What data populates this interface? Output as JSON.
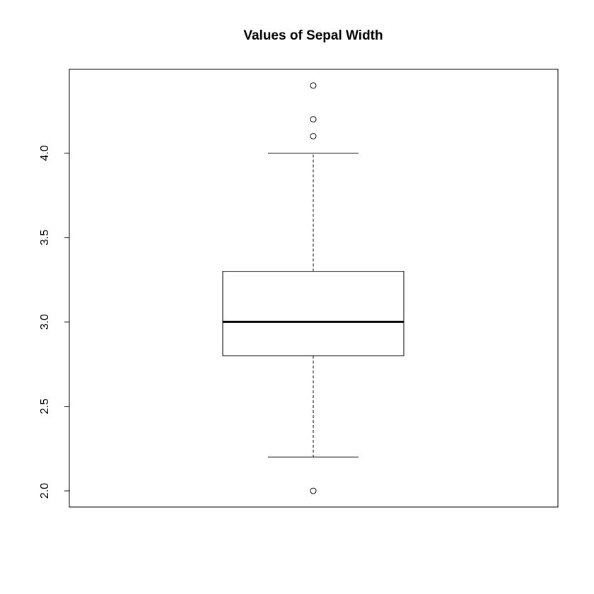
{
  "chart_data": {
    "type": "box",
    "title": "Values of Sepal Width",
    "whisker_low": 2.2,
    "q1": 2.8,
    "median": 3.0,
    "q3": 3.3,
    "whisker_high": 4.0,
    "outliers": [
      4.4,
      4.2,
      4.1,
      2.0
    ],
    "ylim": [
      1.904,
      4.496
    ],
    "yticks": [
      {
        "value": 2,
        "label": "2.0"
      },
      2.5,
      {
        "value": 3,
        "label": "3.0"
      },
      3.5,
      {
        "value": 4,
        "label": "4.0"
      }
    ],
    "color": "#000000"
  }
}
